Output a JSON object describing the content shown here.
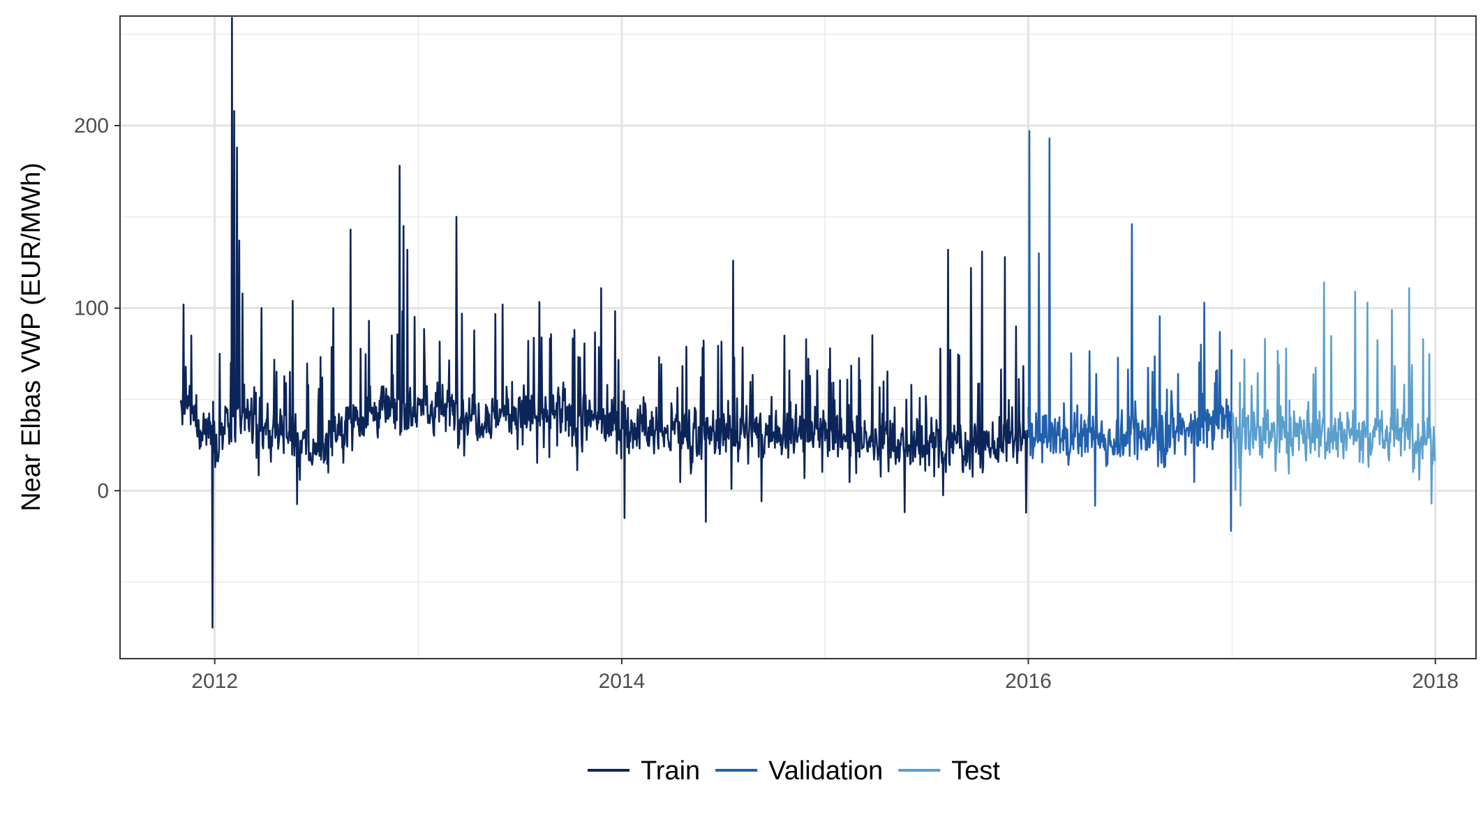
{
  "chart_data": {
    "type": "line",
    "ylabel": "Near Elbas VWP (EUR/MWh)",
    "xlabel": "",
    "x_range": [
      "2011-07-15",
      "2018-03-15"
    ],
    "ylim": [
      -92,
      260
    ],
    "x_ticks": [
      {
        "date": "2012-01-01",
        "label": "2012"
      },
      {
        "date": "2014-01-01",
        "label": "2014"
      },
      {
        "date": "2016-01-01",
        "label": "2016"
      },
      {
        "date": "2018-01-01",
        "label": "2018"
      }
    ],
    "x_minor_ticks": [
      "2013-01-01",
      "2015-01-01",
      "2017-01-01"
    ],
    "y_ticks": [
      0,
      100,
      200
    ],
    "y_minor_ticks": [
      -50,
      50,
      150,
      250
    ],
    "grid": true,
    "legend_position": "bottom",
    "series": [
      {
        "name": "Train",
        "color": "#0c2559",
        "start": "2011-11-01",
        "end": "2015-12-31",
        "baseline": [
          [
            "2011-11-01",
            45
          ],
          [
            "2012-01-01",
            32
          ],
          [
            "2012-03-01",
            38
          ],
          [
            "2012-07-01",
            22
          ],
          [
            "2012-09-01",
            40
          ],
          [
            "2012-12-01",
            46
          ],
          [
            "2013-06-01",
            42
          ],
          [
            "2013-12-01",
            38
          ],
          [
            "2014-03-01",
            32
          ],
          [
            "2014-07-01",
            31
          ],
          [
            "2014-12-01",
            33
          ],
          [
            "2015-06-01",
            25
          ],
          [
            "2015-12-31",
            27
          ]
        ],
        "spikes": [
          [
            "2011-11-06",
            102
          ],
          [
            "2011-11-20",
            85
          ],
          [
            "2011-12-28",
            -75
          ],
          [
            "2012-01-10",
            75
          ],
          [
            "2012-02-01",
            260
          ],
          [
            "2012-02-05",
            208
          ],
          [
            "2012-02-10",
            188
          ],
          [
            "2012-02-14",
            137
          ],
          [
            "2012-02-20",
            108
          ],
          [
            "2012-03-25",
            100
          ],
          [
            "2012-05-20",
            104
          ],
          [
            "2012-08-01",
            100
          ],
          [
            "2012-09-01",
            143
          ],
          [
            "2012-11-28",
            178
          ],
          [
            "2012-12-05",
            145
          ],
          [
            "2012-12-12",
            132
          ],
          [
            "2013-03-10",
            150
          ],
          [
            "2013-03-20",
            97
          ],
          [
            "2013-06-01",
            102
          ],
          [
            "2013-08-10",
            84
          ],
          [
            "2013-11-25",
            111
          ],
          [
            "2014-01-06",
            -15
          ],
          [
            "2014-06-01",
            -17
          ],
          [
            "2014-07-20",
            126
          ],
          [
            "2014-10-20",
            85
          ],
          [
            "2015-01-10",
            78
          ],
          [
            "2015-08-10",
            132
          ],
          [
            "2015-09-20",
            122
          ],
          [
            "2015-10-10",
            131
          ],
          [
            "2015-11-20",
            128
          ],
          [
            "2015-12-10",
            90
          ],
          [
            "2015-12-28",
            -12
          ]
        ]
      },
      {
        "name": "Validation",
        "color": "#2160ac",
        "start": "2016-01-01",
        "end": "2016-12-31",
        "baseline": [
          [
            "2016-01-01",
            30
          ],
          [
            "2016-06-01",
            28
          ],
          [
            "2016-12-31",
            38
          ]
        ],
        "spikes": [
          [
            "2016-01-03",
            197
          ],
          [
            "2016-01-20",
            130
          ],
          [
            "2016-02-08",
            193
          ],
          [
            "2016-03-05",
            48
          ],
          [
            "2016-07-05",
            146
          ],
          [
            "2016-11-12",
            103
          ],
          [
            "2016-12-10",
            87
          ],
          [
            "2016-12-30",
            -22
          ]
        ]
      },
      {
        "name": "Test",
        "color": "#5b9fcd",
        "start": "2017-01-01",
        "end": "2017-12-31",
        "baseline": [
          [
            "2017-01-01",
            30
          ],
          [
            "2017-06-01",
            33
          ],
          [
            "2017-12-31",
            30
          ]
        ],
        "spikes": [
          [
            "2017-06-15",
            114
          ],
          [
            "2017-08-10",
            109
          ],
          [
            "2017-09-01",
            103
          ],
          [
            "2017-10-15",
            99
          ],
          [
            "2017-11-15",
            111
          ],
          [
            "2017-12-10",
            83
          ],
          [
            "2017-12-25",
            -7
          ]
        ]
      }
    ]
  }
}
